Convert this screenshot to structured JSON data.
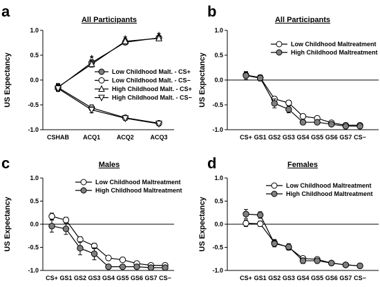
{
  "colors": {
    "low": "#ffffff",
    "high": "#7f7f7f",
    "stroke": "#000000"
  },
  "chart_data": [
    {
      "id": "a",
      "type": "line",
      "panel_label": "a",
      "title": "All Participants",
      "ylabel": "US Expectancy",
      "ylim": [
        -1.0,
        1.0
      ],
      "yticks": [
        "1.0",
        "0.5",
        "0.0",
        "-0.5",
        "-1.0"
      ],
      "yticks_values": [
        1.0,
        0.5,
        0.0,
        -0.5,
        -1.0
      ],
      "categories": [
        "CSHAB",
        "ACQ1",
        "ACQ2",
        "ACQ3"
      ],
      "zero_line": false,
      "legend_position": "center-right",
      "annotations": [
        {
          "text": "*",
          "category": "ACQ1",
          "y": 0.45
        },
        {
          "text": "*",
          "category": "ACQ2",
          "y": 0.85
        },
        {
          "text": "*",
          "category": "ACQ3",
          "y": 0.92
        }
      ],
      "series": [
        {
          "name": "Low Childhood Malt. - CS+",
          "marker": "circle",
          "fill": "gray",
          "values": [
            -0.15,
            0.35,
            0.76,
            0.85
          ],
          "errors": [
            0.07,
            0.06,
            0.05,
            0.04
          ]
        },
        {
          "name": "Low Childhood Malt. - CS−",
          "marker": "circle",
          "fill": "white",
          "values": [
            -0.15,
            -0.56,
            -0.76,
            -0.87
          ],
          "errors": [
            0.06,
            0.06,
            0.04,
            0.03
          ]
        },
        {
          "name": "High Childhood Malt. - CS+",
          "marker": "triangle-up",
          "fill": "white",
          "values": [
            -0.14,
            0.32,
            0.78,
            0.84
          ],
          "errors": [
            0.07,
            0.06,
            0.05,
            0.04
          ]
        },
        {
          "name": "High Childhood Malt. - CS−",
          "marker": "triangle-down",
          "fill": "white",
          "values": [
            -0.17,
            -0.6,
            -0.77,
            -0.88
          ],
          "errors": [
            0.06,
            0.06,
            0.04,
            0.03
          ]
        }
      ]
    },
    {
      "id": "b",
      "type": "line",
      "panel_label": "b",
      "title": "All Participants",
      "ylabel": "US Expectancy",
      "ylim": [
        -1.0,
        1.0
      ],
      "yticks": [
        "1.0",
        "0.5",
        "0.0",
        "-0.5",
        "-1.0"
      ],
      "yticks_values": [
        1.0,
        0.5,
        0.0,
        -0.5,
        -1.0
      ],
      "categories": [
        "CS+",
        "GS1",
        "GS2",
        "GS3",
        "GS4",
        "GS5",
        "GS6",
        "GS7",
        "CS−"
      ],
      "zero_line": true,
      "legend_position": "top-right",
      "series": [
        {
          "name": "Low Childhood Maltreatment",
          "marker": "circle",
          "fill": "white",
          "values": [
            0.1,
            0.05,
            -0.38,
            -0.46,
            -0.73,
            -0.77,
            -0.86,
            -0.91,
            -0.91
          ],
          "errors": [
            0.06,
            0.05,
            0.05,
            0.05,
            0.04,
            0.04,
            0.03,
            0.03,
            0.03
          ]
        },
        {
          "name": "High Childhood Maltreatment",
          "marker": "circle",
          "fill": "gray",
          "values": [
            0.09,
            0.04,
            -0.47,
            -0.59,
            -0.85,
            -0.85,
            -0.89,
            -0.93,
            -0.93
          ],
          "errors": [
            0.08,
            0.06,
            0.09,
            0.07,
            0.05,
            0.04,
            0.03,
            0.03,
            0.03
          ]
        }
      ]
    },
    {
      "id": "c",
      "type": "line",
      "panel_label": "c",
      "title": "Males",
      "ylabel": "US Expectancy",
      "ylim": [
        -1.0,
        1.0
      ],
      "yticks": [
        "1.0",
        "0.5",
        "0.0",
        "-0.5",
        "-1.0"
      ],
      "yticks_values": [
        1.0,
        0.5,
        0.0,
        -0.5,
        -1.0
      ],
      "categories": [
        "CS+",
        "GS1",
        "GS2",
        "GS3",
        "GS4",
        "GS5",
        "GS6",
        "GS7",
        "CS−"
      ],
      "zero_line": true,
      "legend_position": "top-right",
      "series": [
        {
          "name": "Low Childhood Maltreatment",
          "marker": "circle",
          "fill": "white",
          "values": [
            0.17,
            0.09,
            -0.33,
            -0.47,
            -0.73,
            -0.77,
            -0.85,
            -0.89,
            -0.89
          ],
          "errors": [
            0.07,
            0.06,
            0.06,
            0.06,
            0.05,
            0.05,
            0.04,
            0.04,
            0.04
          ]
        },
        {
          "name": "High Childhood Maltreatment",
          "marker": "circle",
          "fill": "gray",
          "values": [
            -0.04,
            -0.1,
            -0.52,
            -0.64,
            -0.92,
            -0.92,
            -0.92,
            -0.94,
            -0.94
          ],
          "errors": [
            0.13,
            0.12,
            0.14,
            0.13,
            0.05,
            0.04,
            0.04,
            0.03,
            0.03
          ]
        }
      ]
    },
    {
      "id": "d",
      "type": "line",
      "panel_label": "d",
      "title": "Females",
      "ylabel": "US Expectancy",
      "ylim": [
        -1.0,
        1.0
      ],
      "yticks": [
        "1.0",
        "0.5",
        "0.0",
        "-0.5",
        "-1.0"
      ],
      "yticks_values": [
        1.0,
        0.5,
        0.0,
        -0.5,
        -1.0
      ],
      "categories": [
        "CS+",
        "GS1",
        "GS2",
        "GS3",
        "GS4",
        "GS5",
        "GS6",
        "GS7",
        "CS−"
      ],
      "zero_line": true,
      "legend_position": "top-right",
      "series": [
        {
          "name": "Low Childhood Maltreatment",
          "marker": "circle",
          "fill": "white",
          "values": [
            0.02,
            0.01,
            -0.4,
            -0.5,
            -0.74,
            -0.76,
            -0.84,
            -0.88,
            -0.9
          ],
          "errors": [
            0.07,
            0.06,
            0.07,
            0.06,
            0.05,
            0.05,
            0.04,
            0.03,
            0.03
          ]
        },
        {
          "name": "High Childhood Maltreatment",
          "marker": "circle",
          "fill": "gray",
          "values": [
            0.22,
            0.2,
            -0.42,
            -0.49,
            -0.79,
            -0.79,
            -0.84,
            -0.88,
            -0.9
          ],
          "errors": [
            0.1,
            0.07,
            0.07,
            0.07,
            0.06,
            0.05,
            0.04,
            0.03,
            0.03
          ]
        }
      ]
    }
  ]
}
